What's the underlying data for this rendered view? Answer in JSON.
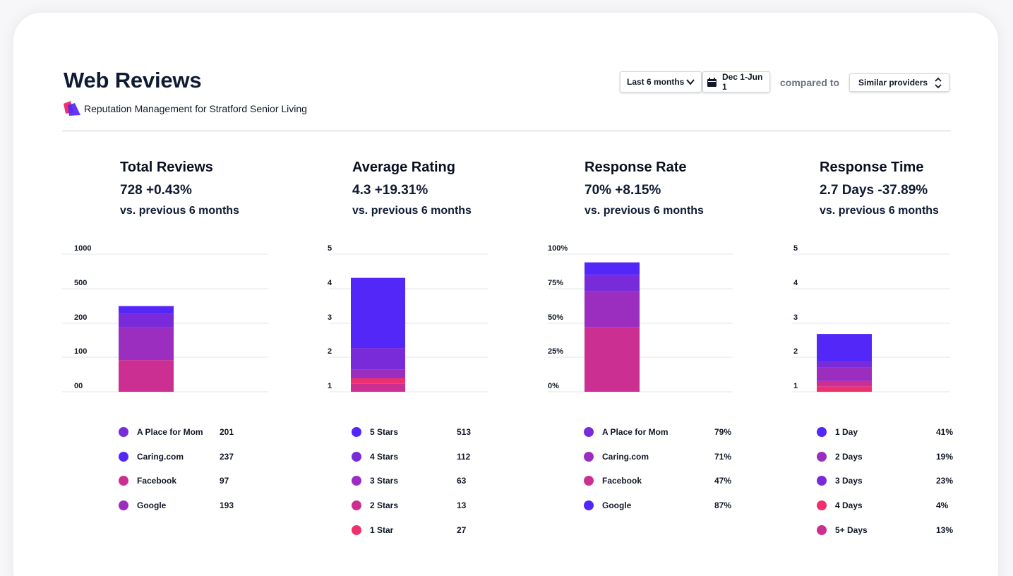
{
  "header": {
    "title": "Web Reviews",
    "subtitle": "Reputation Management for Stratford Senior Living",
    "period_select": "Last 6 months",
    "date_range": "Dec 1-Jun 1",
    "compared_to_label": "compared to",
    "compare_select": "Similar providers"
  },
  "colors": {
    "blue": "#5427f9",
    "violet": "#7a2bd9",
    "purple": "#9b2dbf",
    "magenta": "#cc2f92",
    "pink": "#f0306c",
    "grid": "#e3e5ea"
  },
  "metrics": [
    {
      "title": "Total Reviews",
      "value": "728 +0.43%",
      "comparison": "vs. previous 6 months"
    },
    {
      "title": "Average Rating",
      "value": "4.3 +19.31%",
      "comparison": "vs. previous 6 months"
    },
    {
      "title": "Response Rate",
      "value": "70% +8.15%",
      "comparison": "vs. previous 6 months"
    },
    {
      "title": "Response Time",
      "value": "2.7 Days -37.89%",
      "comparison": "vs. previous 6 months"
    }
  ],
  "chart_data": [
    {
      "type": "bar",
      "title": "Total Reviews",
      "y_ticks": [
        "1000",
        "500",
        "200",
        "100",
        "00"
      ],
      "stacked_segments_bottom_to_top": [
        {
          "name": "Facebook",
          "color": "#cc2f92",
          "top_level": 0.92
        },
        {
          "name": "Google",
          "color": "#9b2dbf",
          "top_level": 1.87
        },
        {
          "name": "A Place for Mom",
          "color": "#7a2bd9",
          "top_level": 2.26
        },
        {
          "name": "Caring.com",
          "color": "#5427f9",
          "top_level": 2.49
        }
      ],
      "legend": [
        {
          "label": "A Place for Mom",
          "value": "201",
          "color": "#7a2bd9"
        },
        {
          "label": "Caring.com",
          "value": "237",
          "color": "#5427f9"
        },
        {
          "label": "Facebook",
          "value": "97",
          "color": "#cc2f92"
        },
        {
          "label": "Google",
          "value": "193",
          "color": "#9b2dbf"
        }
      ]
    },
    {
      "type": "bar",
      "title": "Average Rating",
      "y_ticks": [
        "5",
        "4",
        "3",
        "2",
        "1"
      ],
      "stacked_segments_bottom_to_top": [
        {
          "name": "2 Stars",
          "color": "#cc2f92",
          "top_level": 1.24
        },
        {
          "name": "1 Star",
          "color": "#f0306c",
          "top_level": 1.39
        },
        {
          "name": "3 Stars",
          "color": "#9b2dbf",
          "top_level": 1.64
        },
        {
          "name": "4 Stars",
          "color": "#7a2bd9",
          "top_level": 2.27
        },
        {
          "name": "5 Stars",
          "color": "#5427f9",
          "top_level": 4.31
        }
      ],
      "legend": [
        {
          "label": "5 Stars",
          "value": "513",
          "color": "#5427f9"
        },
        {
          "label": "4 Stars",
          "value": "112",
          "color": "#7a2bd9"
        },
        {
          "label": "3 Stars",
          "value": "63",
          "color": "#9b2dbf"
        },
        {
          "label": "2 Stars",
          "value": "13",
          "color": "#cc2f92"
        },
        {
          "label": "1 Star",
          "value": "27",
          "color": "#f0306c"
        }
      ]
    },
    {
      "type": "bar",
      "title": "Response Rate",
      "y_ticks": [
        "100%",
        "75%",
        "50%",
        "25%",
        "0%"
      ],
      "stacked_segments_bottom_to_top": [
        {
          "name": "Facebook",
          "color": "#cc2f92",
          "top_level": 47
        },
        {
          "name": "Caring.com",
          "color": "#9b2dbf",
          "top_level": 73
        },
        {
          "name": "A Place for Mom",
          "color": "#7a2bd9",
          "top_level": 85
        },
        {
          "name": "Google",
          "color": "#5427f9",
          "top_level": 94
        }
      ],
      "legend": [
        {
          "label": "A Place for Mom",
          "value": "79%",
          "color": "#7a2bd9"
        },
        {
          "label": "Caring.com",
          "value": "71%",
          "color": "#9b2dbf"
        },
        {
          "label": "Facebook",
          "value": "47%",
          "color": "#cc2f92"
        },
        {
          "label": "Google",
          "value": "87%",
          "color": "#5427f9"
        }
      ]
    },
    {
      "type": "bar",
      "title": "Response Time",
      "y_ticks": [
        "5",
        "4",
        "3",
        "2",
        "1"
      ],
      "stacked_segments_bottom_to_top": [
        {
          "name": "4 Days",
          "color": "#f0306c",
          "top_level": 1.15
        },
        {
          "name": "5+ Days",
          "color": "#cc2f92",
          "top_level": 1.31
        },
        {
          "name": "2 Days",
          "color": "#9b2dbf",
          "top_level": 1.7
        },
        {
          "name": "3 Days",
          "color": "#7a2bd9",
          "top_level": 1.87
        },
        {
          "name": "1 Day",
          "color": "#5427f9",
          "top_level": 2.68
        }
      ],
      "legend": [
        {
          "label": "1 Day",
          "value": "41%",
          "color": "#5427f9"
        },
        {
          "label": "2 Days",
          "value": "19%",
          "color": "#9b2dbf"
        },
        {
          "label": "3 Days",
          "value": "23%",
          "color": "#7a2bd9"
        },
        {
          "label": "4 Days",
          "value": "4%",
          "color": "#f0306c"
        },
        {
          "label": "5+ Days",
          "value": "13%",
          "color": "#cc2f92"
        }
      ]
    }
  ]
}
